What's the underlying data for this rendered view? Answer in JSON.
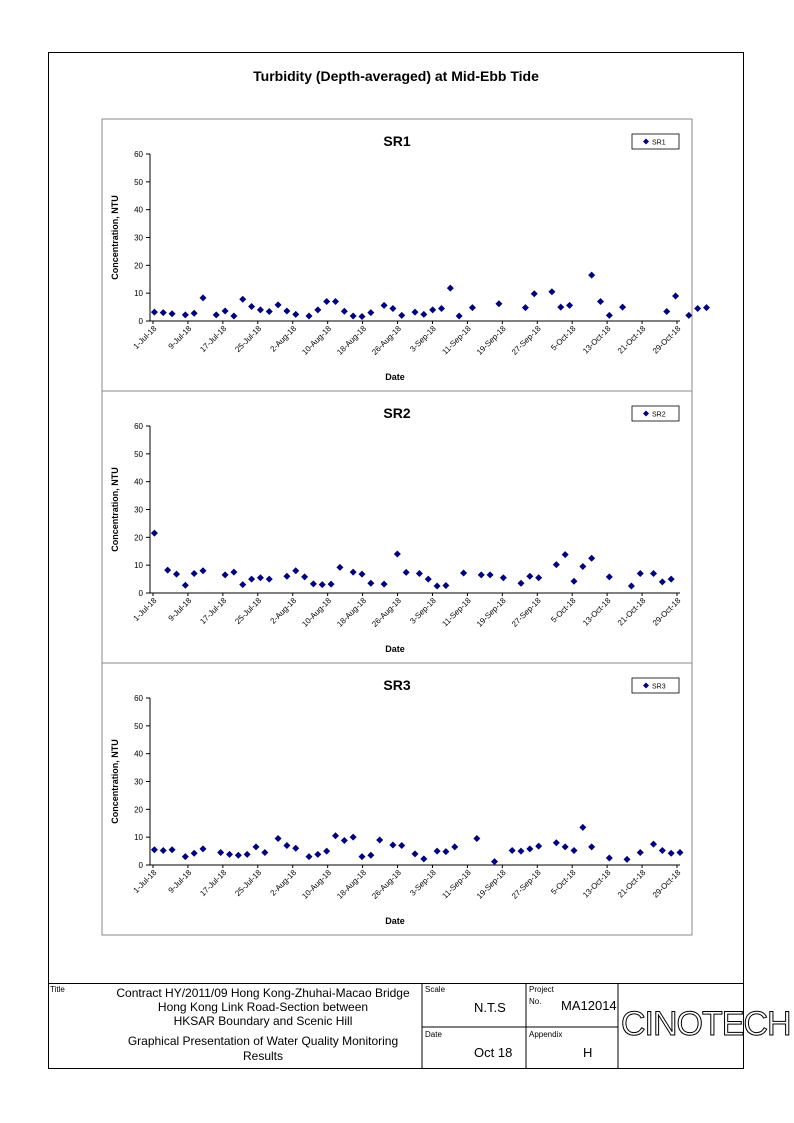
{
  "page_title": "Turbidity (Depth-averaged) at Mid-Ebb Tide",
  "chart_data": [
    {
      "type": "scatter",
      "title": "SR1",
      "xlabel": "Date",
      "ylabel": "Concentration, NTU",
      "ylim": [
        0,
        60
      ],
      "yticks": [
        "0",
        "10",
        "20",
        "30",
        "40",
        "50",
        "60"
      ],
      "xlim": [
        0,
        120
      ],
      "x_tick_labels": [
        "1-Jul-18",
        "9-Jul-18",
        "17-Jul-18",
        "25-Jul-18",
        "2-Aug-18",
        "10-Aug-18",
        "18-Aug-18",
        "26-Aug-18",
        "3-Sep-18",
        "11-Sep-18",
        "19-Sep-18",
        "27-Sep-18",
        "5-Oct-18",
        "13-Oct-18",
        "21-Oct-18",
        "29-Oct-18"
      ],
      "legend": {
        "label": "SR1",
        "position": "top-right"
      },
      "grid": false,
      "series": [
        {
          "name": "SR1",
          "color": "#000080",
          "x": [
            1,
            3,
            5,
            8,
            10,
            12,
            15,
            17,
            19,
            21,
            23,
            25,
            27,
            29,
            31,
            33,
            36,
            38,
            40,
            42,
            44,
            46,
            48,
            50,
            53,
            55,
            57,
            60,
            62,
            64,
            66,
            68,
            70,
            73,
            79,
            85,
            87,
            91,
            93,
            95,
            100,
            102,
            104,
            107,
            117,
            119,
            122,
            124,
            126
          ],
          "y": [
            3.2,
            3.0,
            2.6,
            2.2,
            2.8,
            8.3,
            2.2,
            3.6,
            1.8,
            7.8,
            5.2,
            4.0,
            3.4,
            5.8,
            3.6,
            2.4,
            1.8,
            4.0,
            7.0,
            7.0,
            3.5,
            1.8,
            1.6,
            3.0,
            5.6,
            4.5,
            2.0,
            3.2,
            2.4,
            4.0,
            4.5,
            11.8,
            1.8,
            4.8,
            6.2,
            4.8,
            9.8,
            10.5,
            5.0,
            5.6,
            16.5,
            7.0,
            2.0,
            5.0,
            3.4,
            9.0,
            2.0,
            4.5,
            4.8
          ]
        }
      ]
    },
    {
      "type": "scatter",
      "title": "SR2",
      "xlabel": "Date",
      "ylabel": "Concentration, NTU",
      "ylim": [
        0,
        60
      ],
      "yticks": [
        "0",
        "10",
        "20",
        "30",
        "40",
        "50",
        "60"
      ],
      "xlim": [
        0,
        120
      ],
      "x_tick_labels": [
        "1-Jul-18",
        "9-Jul-18",
        "17-Jul-18",
        "25-Jul-18",
        "2-Aug-18",
        "10-Aug-18",
        "18-Aug-18",
        "26-Aug-18",
        "3-Sep-18",
        "11-Sep-18",
        "19-Sep-18",
        "27-Sep-18",
        "5-Oct-18",
        "13-Oct-18",
        "21-Oct-18",
        "29-Oct-18"
      ],
      "legend": {
        "label": "SR2",
        "position": "top-right"
      },
      "grid": false,
      "series": [
        {
          "name": "SR2",
          "color": "#000080",
          "x": [
            1,
            4,
            6,
            8,
            10,
            12,
            17,
            19,
            21,
            23,
            25,
            27,
            31,
            33,
            35,
            37,
            39,
            41,
            43,
            46,
            48,
            50,
            53,
            56,
            58,
            61,
            63,
            65,
            67,
            71,
            75,
            77,
            80,
            84,
            86,
            88,
            92,
            94,
            96,
            98,
            100,
            104,
            109,
            111,
            114,
            116,
            118
          ],
          "y": [
            21.5,
            8.2,
            6.8,
            2.8,
            7.0,
            8.0,
            6.5,
            7.5,
            3.0,
            5.0,
            5.5,
            5.0,
            6.0,
            8.0,
            5.8,
            3.3,
            3.0,
            3.2,
            9.2,
            7.5,
            6.8,
            3.5,
            3.2,
            14.0,
            7.4,
            7.0,
            5.0,
            2.5,
            2.7,
            7.2,
            6.5,
            6.5,
            5.5,
            3.5,
            6.0,
            5.5,
            10.2,
            13.8,
            4.2,
            9.5,
            12.5,
            5.8,
            2.5,
            7.0,
            7.0,
            4.0,
            5.0
          ]
        }
      ]
    },
    {
      "type": "scatter",
      "title": "SR3",
      "xlabel": "Date",
      "ylabel": "Concentration, NTU",
      "ylim": [
        0,
        60
      ],
      "yticks": [
        "0",
        "10",
        "20",
        "30",
        "40",
        "50",
        "60"
      ],
      "xlim": [
        0,
        120
      ],
      "x_tick_labels": [
        "1-Jul-18",
        "9-Jul-18",
        "17-Jul-18",
        "25-Jul-18",
        "2-Aug-18",
        "10-Aug-18",
        "18-Aug-18",
        "26-Aug-18",
        "3-Sep-18",
        "11-Sep-18",
        "19-Sep-18",
        "27-Sep-18",
        "5-Oct-18",
        "13-Oct-18",
        "21-Oct-18",
        "29-Oct-18"
      ],
      "legend": {
        "label": "SR3",
        "position": "top-right"
      },
      "grid": false,
      "series": [
        {
          "name": "SR3",
          "color": "#000080",
          "x": [
            1,
            3,
            5,
            8,
            10,
            12,
            16,
            18,
            20,
            22,
            24,
            26,
            29,
            31,
            33,
            36,
            38,
            40,
            42,
            44,
            46,
            48,
            50,
            52,
            55,
            57,
            60,
            62,
            65,
            67,
            69,
            74,
            78,
            82,
            84,
            86,
            88,
            92,
            94,
            96,
            98,
            100,
            104,
            108,
            111,
            114,
            116,
            118,
            120
          ],
          "y": [
            5.5,
            5.2,
            5.5,
            3.0,
            4.2,
            5.8,
            4.5,
            3.8,
            3.5,
            3.8,
            6.5,
            4.5,
            9.5,
            7.0,
            6.0,
            3.0,
            3.8,
            5.0,
            10.5,
            8.8,
            10.0,
            3.0,
            3.5,
            9.0,
            7.2,
            7.0,
            4.0,
            2.2,
            5.0,
            4.8,
            6.5,
            9.5,
            1.2,
            5.2,
            5.0,
            5.8,
            6.8,
            8.0,
            6.5,
            5.2,
            13.5,
            6.5,
            2.5,
            2.0,
            4.5,
            7.5,
            5.2,
            4.2,
            4.5
          ]
        }
      ]
    }
  ],
  "title_block": {
    "title_label": "Title",
    "title_lines": [
      "Contract HY/2011/09 Hong Kong-Zhuhai-Macao Bridge",
      "Hong Kong Link Road-Section between",
      "HKSAR Boundary and Scenic Hill"
    ],
    "subtitle_lines": [
      "Graphical Presentation of Water Quality Monitoring",
      "Results"
    ],
    "scale_label": "Scale",
    "scale_value": "N.T.S",
    "date_label": "Date",
    "date_value": "Oct 18",
    "project_label": "Project",
    "no_label": "No.",
    "project_value": "MA12014",
    "appendix_label": "Appendix",
    "appendix_value": "H",
    "logo_text": "CINOTECH"
  }
}
